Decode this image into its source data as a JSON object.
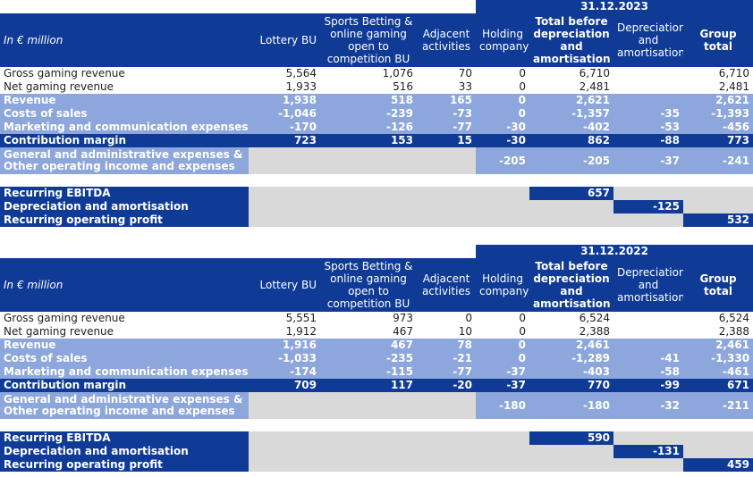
{
  "columns": {
    "label": "In € million",
    "lottery": "Lottery BU",
    "sports": "Sports Betting & online gaming open to competition BU",
    "adjacent": "Adjacent activities",
    "holding": "Holding company",
    "total_before": "Total before depreciation and amortisation",
    "depreciation": "Depreciation and amortisation",
    "group_total": "Group total"
  },
  "labels": {
    "gross": "Gross gaming revenue",
    "net": "Net gaming revenue",
    "revenue": "Revenue",
    "cos": "Costs of sales",
    "marketing": "Marketing and communication expenses",
    "contribution": "Contribution margin",
    "ga": "General and administrative expenses & Other operating income and expenses",
    "ebitda": "Recurring EBITDA",
    "da": "Depreciation and amortisation",
    "rop": "Recurring operating profit"
  },
  "y2023": {
    "date": "31.12.2023",
    "gross": [
      "5,564",
      "1,076",
      "70",
      "0",
      "6,710",
      "",
      "6,710"
    ],
    "net": [
      "1,933",
      "516",
      "33",
      "0",
      "2,481",
      "",
      "2,481"
    ],
    "revenue": [
      "1,938",
      "518",
      "165",
      "0",
      "2,621",
      "",
      "2,621"
    ],
    "cos": [
      "-1,046",
      "-239",
      "-73",
      "0",
      "-1,357",
      "-35",
      "-1,393"
    ],
    "marketing": [
      "-170",
      "-126",
      "-77",
      "-30",
      "-402",
      "-53",
      "-456"
    ],
    "contribution": [
      "723",
      "153",
      "15",
      "-30",
      "862",
      "-88",
      "773"
    ],
    "ga": [
      "-205",
      "-205",
      "-37",
      "-241"
    ],
    "ebitda": "657",
    "da": "-125",
    "rop": "532"
  },
  "y2022": {
    "date": "31.12.2022",
    "gross": [
      "5,551",
      "973",
      "0",
      "0",
      "6,524",
      "",
      "6,524"
    ],
    "net": [
      "1,912",
      "467",
      "10",
      "0",
      "2,388",
      "",
      "2,388"
    ],
    "revenue": [
      "1,916",
      "467",
      "78",
      "0",
      "2,461",
      "",
      "2,461"
    ],
    "cos": [
      "-1,033",
      "-235",
      "-21",
      "0",
      "-1,289",
      "-41",
      "-1,330"
    ],
    "marketing": [
      "-174",
      "-115",
      "-77",
      "-37",
      "-403",
      "-58",
      "-461"
    ],
    "contribution": [
      "709",
      "117",
      "-20",
      "-37",
      "770",
      "-99",
      "671"
    ],
    "ga": [
      "-180",
      "-180",
      "-32",
      "-211"
    ],
    "ebitda": "590",
    "da": "-131",
    "rop": "459"
  }
}
